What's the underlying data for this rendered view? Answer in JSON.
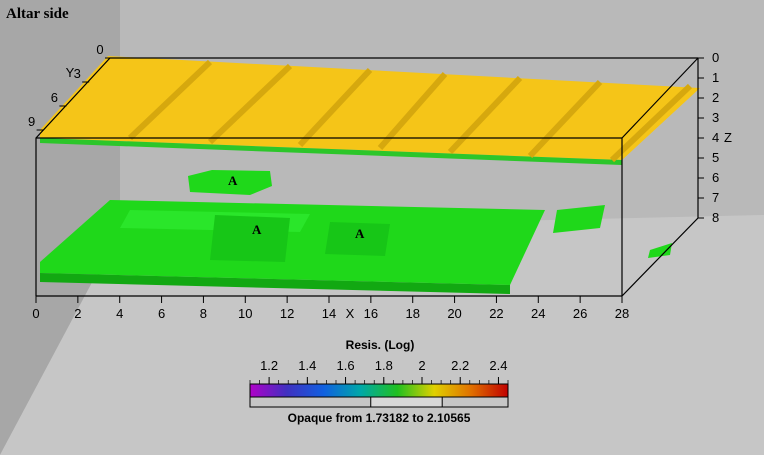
{
  "chart_data": {
    "type": "3d-resistivity-isosurface",
    "title": "Altar side",
    "x_axis": {
      "label": "X",
      "ticks": [
        0,
        2,
        4,
        6,
        8,
        10,
        12,
        14,
        16,
        18,
        20,
        22,
        24,
        26,
        28
      ]
    },
    "y_axis": {
      "label": "Y",
      "ticks": [
        0,
        3,
        6,
        9
      ]
    },
    "z_axis": {
      "label": "Z",
      "ticks": [
        0,
        1,
        2,
        3,
        4,
        5,
        6,
        7,
        8
      ]
    },
    "annotations": [
      "A",
      "A",
      "A"
    ],
    "legend": {
      "title": "Resis. (Log)",
      "ticks": [
        1.2,
        1.4,
        1.6,
        1.8,
        2,
        2.2,
        2.4
      ],
      "tick_labels": [
        "1.2",
        "1.4",
        "1.6",
        "1.8",
        "2",
        "2.2",
        "2.4"
      ],
      "range": [
        1.1,
        2.45
      ],
      "opaque_from": 1.73182,
      "opaque_to": 2.10565,
      "caption": "Opaque from 1.73182 to 2.10565"
    },
    "colors": {
      "background": "#bdbdbd",
      "high_surface": "#f5c518",
      "low_surface": "#22e31a",
      "colormap": [
        "#b000c8",
        "#4030c0",
        "#1060e0",
        "#00a8a8",
        "#20c020",
        "#e0d000",
        "#e07000",
        "#c00000"
      ]
    }
  }
}
